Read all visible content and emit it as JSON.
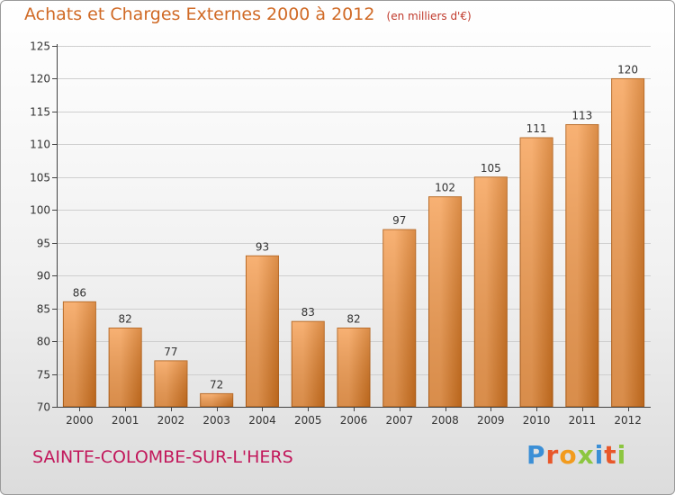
{
  "title": "Achats et Charges Externes 2000 à 2012",
  "unit_note": "(en milliers d'€)",
  "commune": "SAINTE-COLOMBE-SUR-L'HERS",
  "logo": {
    "text": "Proxiti",
    "letter_colors": [
      "#3b8fd6",
      "#e8572a",
      "#f29b1d",
      "#8cc63f",
      "#3b8fd6",
      "#e8572a",
      "#8cc63f"
    ]
  },
  "colors": {
    "bar_light": "#f6a055",
    "bar_dark": "#d2731f",
    "bar_side": "#b35f16",
    "axis": "#444444",
    "grid": "#cfcfcf",
    "commune": "#c2185b",
    "title": "#d06a26"
  },
  "chart_data": {
    "type": "bar",
    "categories": [
      "2000",
      "2001",
      "2002",
      "2003",
      "2004",
      "2005",
      "2006",
      "2007",
      "2008",
      "2009",
      "2010",
      "2011",
      "2012"
    ],
    "values": [
      86,
      82,
      77,
      72,
      93,
      83,
      82,
      97,
      102,
      105,
      111,
      113,
      120
    ],
    "ylim": [
      70,
      125
    ],
    "yticks": [
      70,
      75,
      80,
      85,
      90,
      95,
      100,
      105,
      110,
      115,
      120,
      125
    ],
    "grid": "horizontal",
    "data_labels": true
  }
}
